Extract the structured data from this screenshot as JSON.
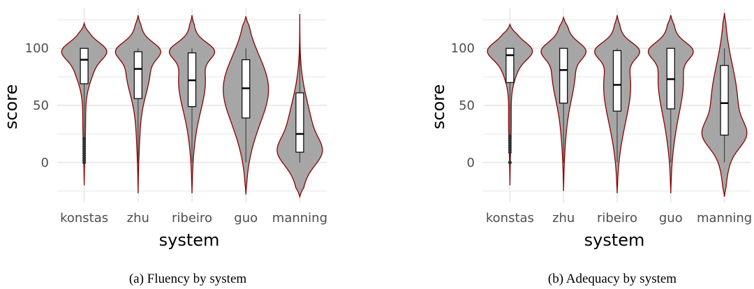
{
  "chart_data": [
    {
      "type": "violin",
      "caption": "(a) Fluency by system",
      "xlabel": "system",
      "ylabel": "score",
      "ylim": [
        -35,
        135
      ],
      "yticks": [
        0,
        50,
        100
      ],
      "grid": true,
      "categories": [
        "konstas",
        "zhu",
        "ribeiro",
        "guo",
        "manning"
      ],
      "boxes": [
        {
          "min": 0,
          "q1": 69,
          "median": 90,
          "q3": 100,
          "max": 100,
          "outliers": [
            0,
            2,
            4,
            6,
            8,
            10,
            12,
            14,
            16,
            18,
            20,
            21
          ]
        },
        {
          "min": 0,
          "q1": 56,
          "median": 82,
          "q3": 97,
          "max": 100,
          "outliers": []
        },
        {
          "min": 0,
          "q1": 49,
          "median": 72,
          "q3": 96,
          "max": 100,
          "outliers": []
        },
        {
          "min": 0,
          "q1": 39,
          "median": 65,
          "q3": 90,
          "max": 100,
          "outliers": []
        },
        {
          "min": 0,
          "q1": 9,
          "median": 25,
          "q3": 61,
          "max": 100,
          "outliers": []
        }
      ],
      "violin_range": [
        [
          -20,
          122
        ],
        [
          -27,
          129
        ],
        [
          -27,
          129
        ],
        [
          -28,
          128
        ],
        [
          -30,
          130
        ]
      ]
    },
    {
      "type": "violin",
      "caption": "(b) Adequacy by system",
      "xlabel": "system",
      "ylabel": "score",
      "ylim": [
        -35,
        135
      ],
      "yticks": [
        0,
        50,
        100
      ],
      "grid": true,
      "categories": [
        "konstas",
        "zhu",
        "ribeiro",
        "guo",
        "manning"
      ],
      "boxes": [
        {
          "min": 0,
          "q1": 70,
          "median": 94,
          "q3": 100,
          "max": 100,
          "outliers": [
            0,
            9,
            11,
            13,
            15,
            17,
            19,
            21,
            23
          ]
        },
        {
          "min": 0,
          "q1": 52,
          "median": 81,
          "q3": 100,
          "max": 100,
          "outliers": []
        },
        {
          "min": 0,
          "q1": 45,
          "median": 68,
          "q3": 98,
          "max": 100,
          "outliers": []
        },
        {
          "min": 0,
          "q1": 47,
          "median": 73,
          "q3": 100,
          "max": 100,
          "outliers": []
        },
        {
          "min": 0,
          "q1": 24,
          "median": 52,
          "q3": 85,
          "max": 100,
          "outliers": []
        }
      ],
      "violin_range": [
        [
          -20,
          121
        ],
        [
          -25,
          127
        ],
        [
          -27,
          129
        ],
        [
          -27,
          129
        ],
        [
          -30,
          131
        ]
      ]
    }
  ],
  "colors": {
    "violin_fill": "#a6a6a6",
    "violin_stroke": "#8b0000",
    "grid": "#ebebeb",
    "box_fill": "#ffffff",
    "box_stroke": "#000000"
  }
}
